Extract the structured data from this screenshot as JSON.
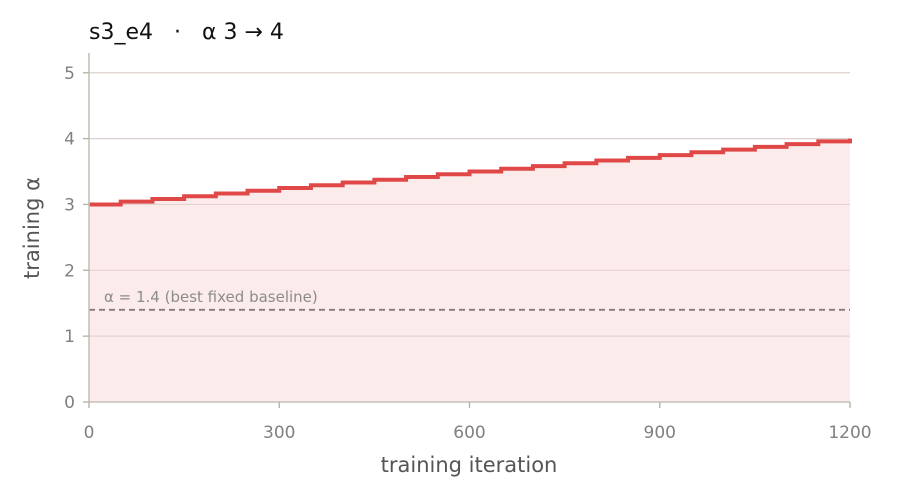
{
  "chart_data": {
    "type": "line",
    "title": "s3_e4   ·   α 3 → 4",
    "xlabel": "training iteration",
    "ylabel": "training α",
    "xlim": [
      0,
      1200
    ],
    "ylim": [
      0,
      5.3
    ],
    "xticks": [
      0,
      300,
      600,
      900,
      1200
    ],
    "xtick_labels": [
      "0",
      "300",
      "600",
      "900",
      "1200"
    ],
    "yticks": [
      0,
      1,
      2,
      3,
      4,
      5
    ],
    "ytick_labels": [
      "0",
      "1",
      "2",
      "3",
      "4",
      "5"
    ],
    "grid": "horizontal",
    "series": [
      {
        "style": "step",
        "color": "#e04848",
        "fill_color": "#fcebeb",
        "x": [
          0,
          50,
          100,
          150,
          200,
          250,
          300,
          350,
          400,
          450,
          500,
          550,
          600,
          650,
          700,
          750,
          800,
          850,
          900,
          950,
          1000,
          1050,
          1100,
          1150,
          1200
        ],
        "y": [
          3.0,
          3.042,
          3.083,
          3.125,
          3.167,
          3.208,
          3.25,
          3.292,
          3.333,
          3.375,
          3.417,
          3.458,
          3.5,
          3.542,
          3.583,
          3.625,
          3.667,
          3.708,
          3.75,
          3.792,
          3.833,
          3.875,
          3.917,
          3.958,
          4.0
        ]
      }
    ],
    "reference_line": {
      "y": 1.4,
      "label": "α = 1.4 (best fixed baseline)",
      "color": "#8a7a7a"
    }
  }
}
